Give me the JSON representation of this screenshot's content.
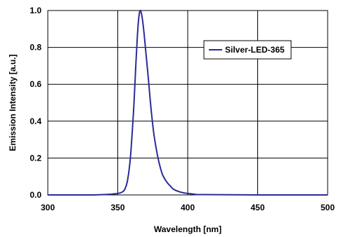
{
  "chart_data": {
    "type": "line",
    "title": "",
    "xlabel": "Wavelength [nm]",
    "ylabel": "Emission Intensity [a.u.]",
    "xlim": [
      300,
      500
    ],
    "ylim": [
      0,
      1.0
    ],
    "x_ticks": [
      "300",
      "350",
      "400",
      "450",
      "500"
    ],
    "y_ticks": [
      "0.0",
      "0.2",
      "0.4",
      "0.6",
      "0.8",
      "1.0"
    ],
    "grid": true,
    "legend_position": "top-right",
    "colors": {
      "series": "#2b2b9a",
      "grid": "#000000",
      "background": "#ffffff"
    },
    "series": [
      {
        "name": "Silver-LED-365",
        "x": [
          300,
          330,
          340,
          345,
          350,
          353,
          355,
          357,
          359,
          361,
          362,
          363,
          364,
          365,
          366,
          367,
          368,
          369,
          370,
          371,
          372,
          373,
          374,
          375,
          376,
          378,
          380,
          382,
          385,
          388,
          390,
          395,
          400,
          405,
          410,
          450,
          500
        ],
        "y": [
          0.0,
          0.0,
          0.002,
          0.004,
          0.008,
          0.015,
          0.03,
          0.08,
          0.2,
          0.42,
          0.56,
          0.72,
          0.86,
          0.96,
          1.0,
          0.98,
          0.93,
          0.86,
          0.78,
          0.7,
          0.62,
          0.53,
          0.45,
          0.38,
          0.32,
          0.23,
          0.16,
          0.11,
          0.07,
          0.045,
          0.03,
          0.015,
          0.008,
          0.004,
          0.002,
          0.0,
          0.0
        ]
      }
    ]
  }
}
